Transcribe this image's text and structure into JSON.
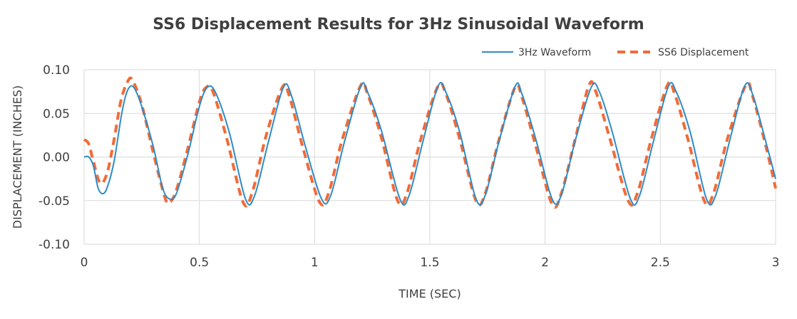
{
  "chart_data": {
    "type": "line",
    "title": "SS6 Displacement Results for 3Hz Sinusoidal Waveform",
    "xlabel": "TIME (SEC)",
    "ylabel": "DISPLACEMENT (INCHES)",
    "xlim": [
      0,
      3
    ],
    "ylim": [
      -0.1,
      0.1
    ],
    "x_ticks": [
      "0",
      "0.5",
      "1",
      "1.5",
      "2",
      "2.5",
      "3"
    ],
    "y_ticks": [
      "0.10",
      "0.05",
      "0.00",
      "-0.05",
      "-0.10"
    ],
    "grid": true,
    "legend_position": "top-right",
    "series": [
      {
        "name": "3Hz Waveform",
        "color": "#2e8bc9",
        "style": "solid",
        "points": [
          [
            0.0,
            0.0
          ],
          [
            0.02,
            0.0
          ],
          [
            0.04,
            -0.01
          ],
          [
            0.06,
            -0.035
          ],
          [
            0.08,
            -0.042
          ],
          [
            0.1,
            -0.035
          ],
          [
            0.13,
            -0.005
          ],
          [
            0.16,
            0.045
          ],
          [
            0.18,
            0.07
          ],
          [
            0.2,
            0.081
          ],
          [
            0.22,
            0.078
          ],
          [
            0.25,
            0.058
          ],
          [
            0.3,
            0.012
          ],
          [
            0.34,
            -0.035
          ],
          [
            0.37,
            -0.048
          ],
          [
            0.4,
            -0.042
          ],
          [
            0.45,
            0.003
          ],
          [
            0.5,
            0.058
          ],
          [
            0.535,
            0.08
          ],
          [
            0.57,
            0.074
          ],
          [
            0.63,
            0.028
          ],
          [
            0.7,
            -0.048
          ],
          [
            0.74,
            -0.044
          ],
          [
            0.8,
            0.018
          ],
          [
            0.865,
            0.08
          ],
          [
            0.9,
            0.07
          ],
          [
            0.96,
            0.012
          ],
          [
            1.03,
            -0.048
          ],
          [
            1.07,
            -0.044
          ],
          [
            1.13,
            0.018
          ],
          [
            1.2,
            0.081
          ],
          [
            1.23,
            0.074
          ],
          [
            1.29,
            0.03
          ],
          [
            1.37,
            -0.048
          ],
          [
            1.41,
            -0.044
          ],
          [
            1.47,
            0.018
          ],
          [
            1.535,
            0.081
          ],
          [
            1.57,
            0.074
          ],
          [
            1.63,
            0.028
          ],
          [
            1.7,
            -0.048
          ],
          [
            1.74,
            -0.044
          ],
          [
            1.8,
            0.018
          ],
          [
            1.87,
            0.081
          ],
          [
            1.9,
            0.072
          ],
          [
            1.96,
            0.02
          ],
          [
            2.03,
            -0.048
          ],
          [
            2.07,
            -0.044
          ],
          [
            2.13,
            0.018
          ],
          [
            2.2,
            0.08
          ],
          [
            2.235,
            0.075
          ],
          [
            2.29,
            0.03
          ],
          [
            2.37,
            -0.048
          ],
          [
            2.41,
            -0.044
          ],
          [
            2.47,
            0.018
          ],
          [
            2.535,
            0.081
          ],
          [
            2.57,
            0.074
          ],
          [
            2.63,
            0.028
          ],
          [
            2.7,
            -0.048
          ],
          [
            2.74,
            -0.044
          ],
          [
            2.8,
            0.018
          ],
          [
            2.865,
            0.081
          ],
          [
            2.9,
            0.072
          ],
          [
            2.96,
            0.015
          ],
          [
            3.0,
            -0.025
          ]
        ]
      },
      {
        "name": "SS6 Displacement",
        "color": "#f26b38",
        "style": "dashed",
        "points": [
          [
            0.0,
            0.02
          ],
          [
            0.02,
            0.015
          ],
          [
            0.04,
            -0.005
          ],
          [
            0.07,
            -0.03
          ],
          [
            0.1,
            -0.018
          ],
          [
            0.13,
            0.02
          ],
          [
            0.16,
            0.065
          ],
          [
            0.19,
            0.087
          ],
          [
            0.21,
            0.088
          ],
          [
            0.25,
            0.06
          ],
          [
            0.3,
            0.005
          ],
          [
            0.35,
            -0.046
          ],
          [
            0.37,
            -0.052
          ],
          [
            0.4,
            -0.038
          ],
          [
            0.45,
            0.01
          ],
          [
            0.5,
            0.063
          ],
          [
            0.53,
            0.08
          ],
          [
            0.56,
            0.074
          ],
          [
            0.62,
            0.02
          ],
          [
            0.69,
            -0.052
          ],
          [
            0.73,
            -0.04
          ],
          [
            0.79,
            0.025
          ],
          [
            0.86,
            0.08
          ],
          [
            0.89,
            0.07
          ],
          [
            0.95,
            0.01
          ],
          [
            1.02,
            -0.051
          ],
          [
            1.06,
            -0.042
          ],
          [
            1.12,
            0.02
          ],
          [
            1.2,
            0.082
          ],
          [
            1.23,
            0.072
          ],
          [
            1.29,
            0.022
          ],
          [
            1.36,
            -0.05
          ],
          [
            1.4,
            -0.042
          ],
          [
            1.46,
            0.02
          ],
          [
            1.535,
            0.081
          ],
          [
            1.57,
            0.072
          ],
          [
            1.63,
            0.02
          ],
          [
            1.7,
            -0.05
          ],
          [
            1.74,
            -0.042
          ],
          [
            1.8,
            0.02
          ],
          [
            1.87,
            0.08
          ],
          [
            1.9,
            0.068
          ],
          [
            1.96,
            0.012
          ],
          [
            2.03,
            -0.054
          ],
          [
            2.07,
            -0.042
          ],
          [
            2.13,
            0.02
          ],
          [
            2.19,
            0.082
          ],
          [
            2.22,
            0.075
          ],
          [
            2.28,
            0.022
          ],
          [
            2.36,
            -0.05
          ],
          [
            2.4,
            -0.042
          ],
          [
            2.46,
            0.02
          ],
          [
            2.53,
            0.082
          ],
          [
            2.56,
            0.074
          ],
          [
            2.62,
            0.02
          ],
          [
            2.69,
            -0.05
          ],
          [
            2.73,
            -0.042
          ],
          [
            2.79,
            0.02
          ],
          [
            2.87,
            0.082
          ],
          [
            2.9,
            0.07
          ],
          [
            2.96,
            0.01
          ],
          [
            3.0,
            -0.036
          ]
        ]
      }
    ]
  }
}
